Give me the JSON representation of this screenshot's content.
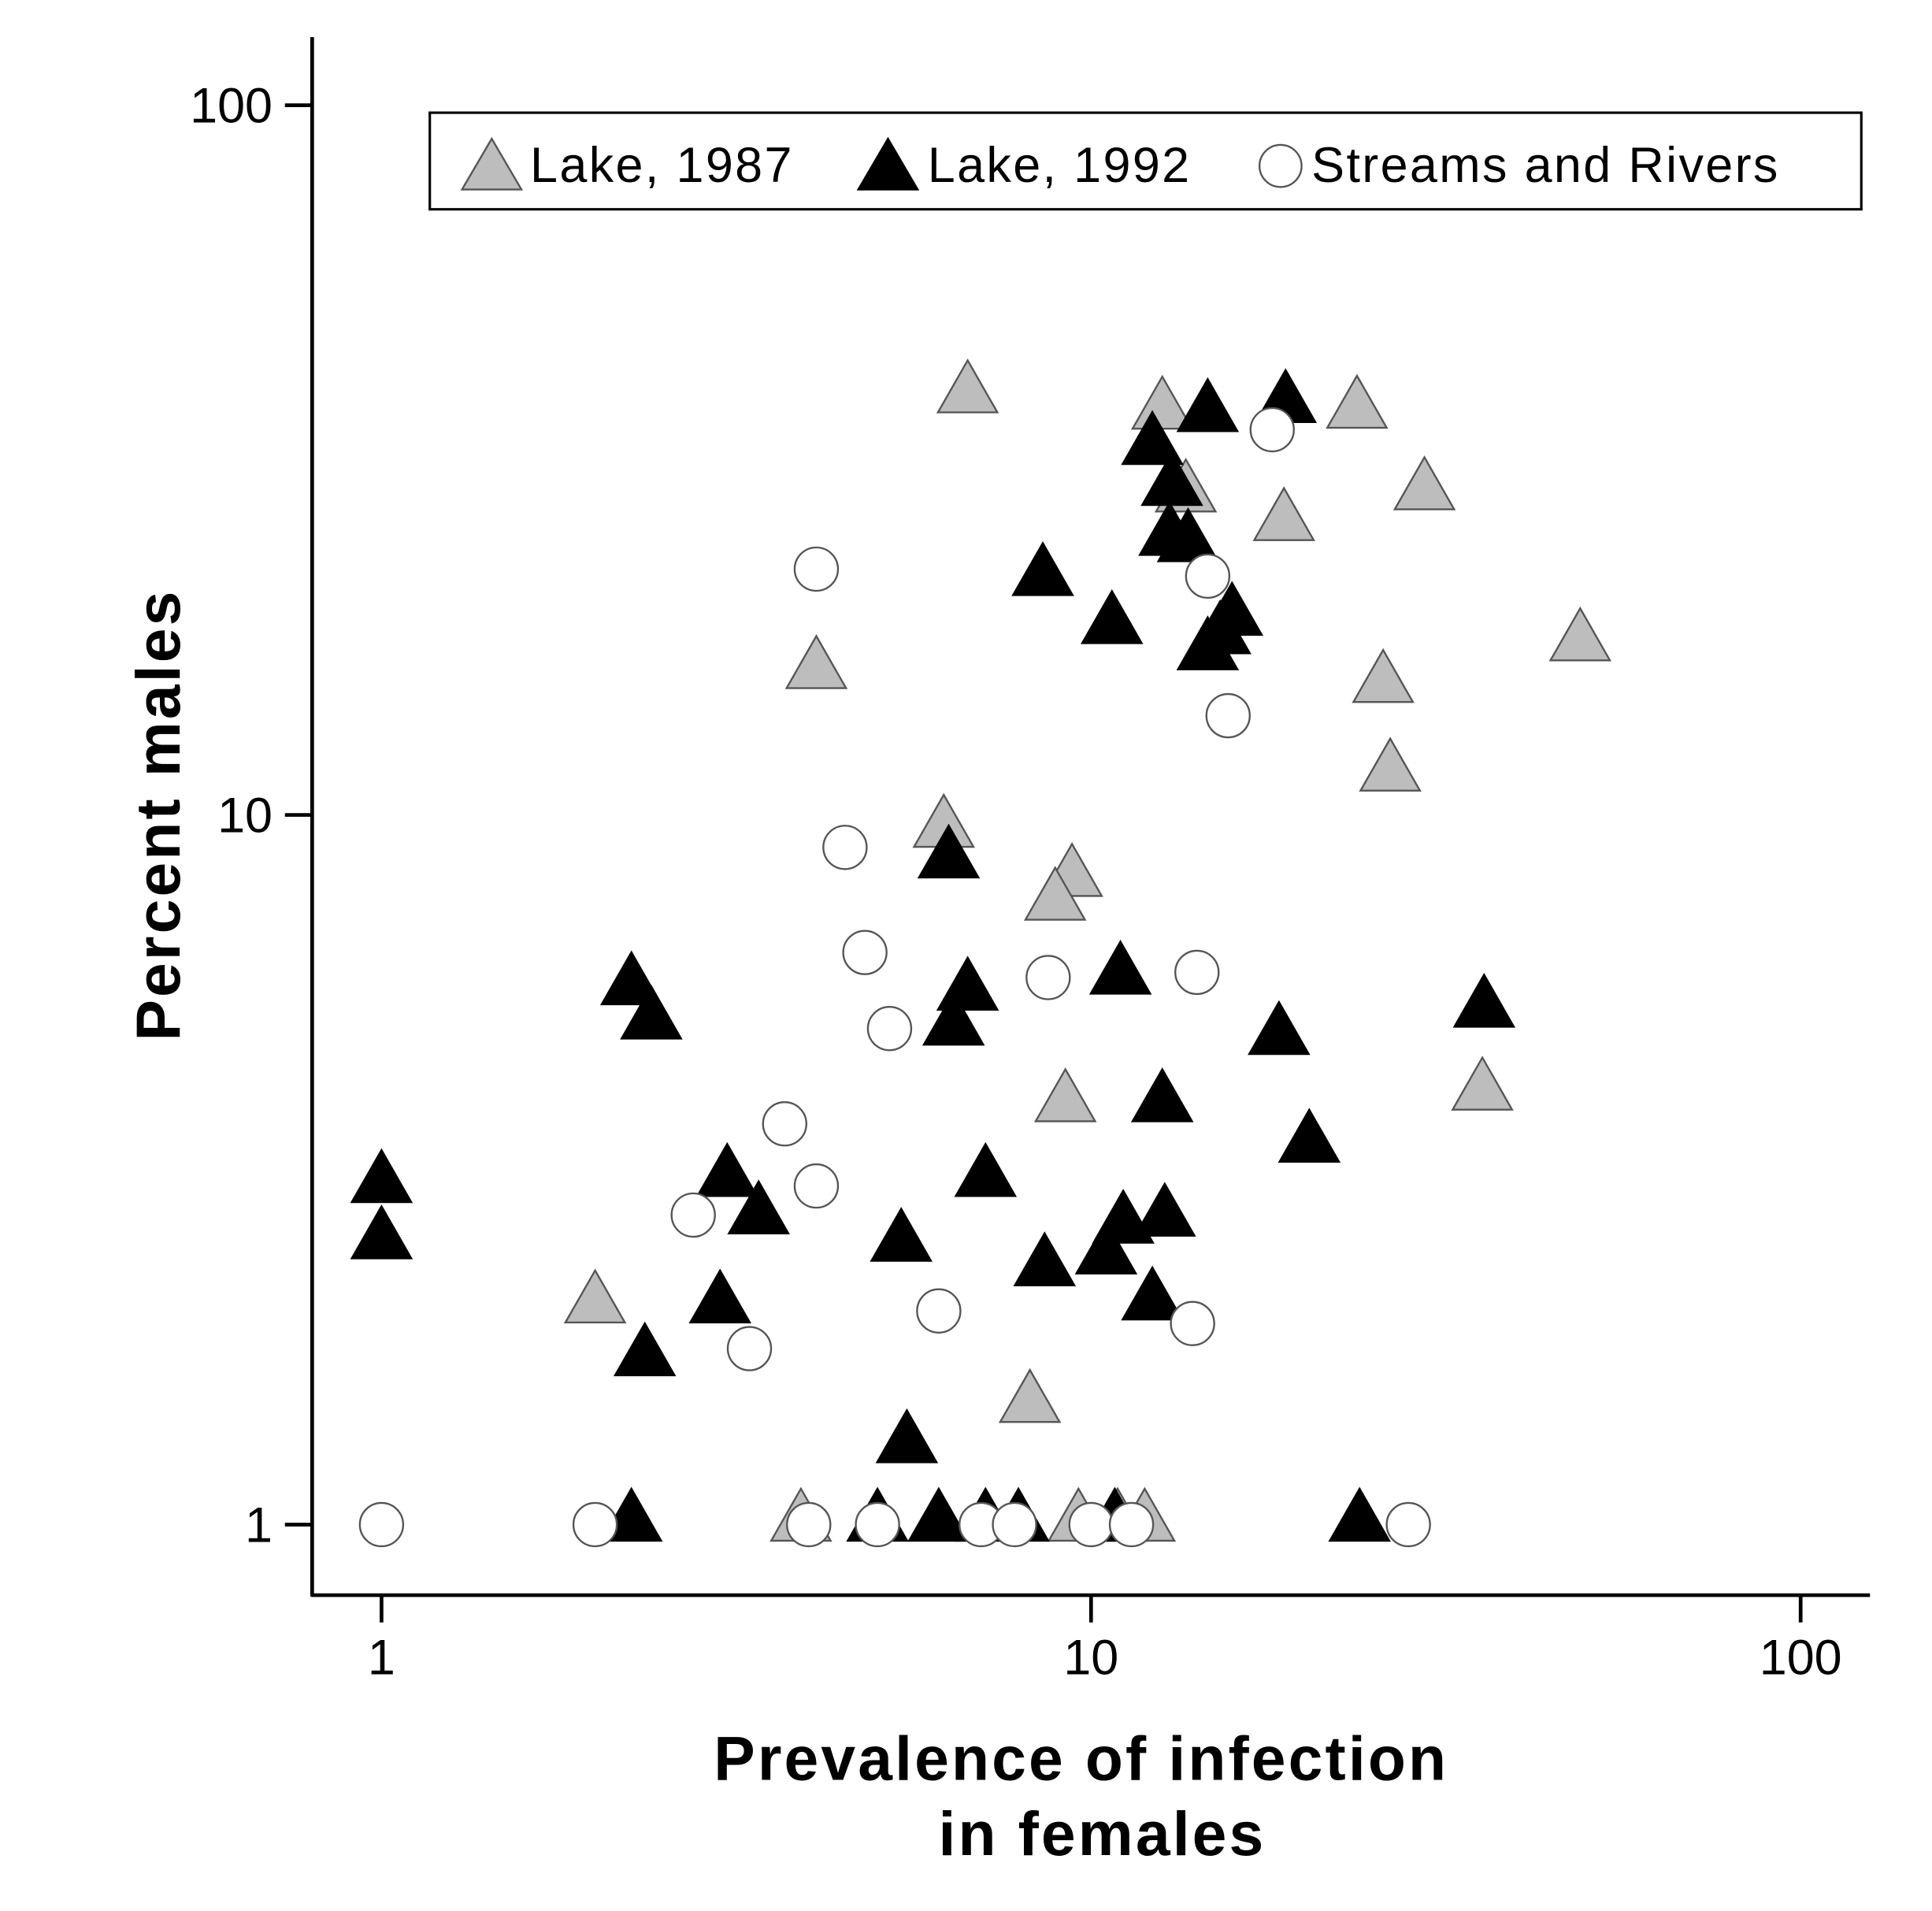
{
  "chart_data": {
    "type": "scatter",
    "title": "",
    "xlabel": [
      "Prevalence of infection",
      "in females"
    ],
    "ylabel": "Percent males",
    "xscale": "log",
    "yscale": "log",
    "xlim": [
      0.8,
      120
    ],
    "ylim": [
      0.8,
      120
    ],
    "xticks": [
      1,
      10,
      100
    ],
    "xtick_labels": [
      "1",
      "10",
      "100"
    ],
    "yticks": [
      1,
      10,
      100
    ],
    "ytick_labels": [
      "1",
      "10",
      "100"
    ],
    "grid": false,
    "legend_position": "top",
    "series": [
      {
        "name": "Lake, 1987",
        "marker": "triangle",
        "color": "#bdbdbd",
        "points": [
          [
            6.7,
            38.9
          ],
          [
            12.6,
            36.9
          ],
          [
            23.7,
            37
          ],
          [
            13.6,
            28.2
          ],
          [
            29.5,
            28.4
          ],
          [
            18.7,
            25.7
          ],
          [
            48.9,
            17.4
          ],
          [
            4.1,
            15.9
          ],
          [
            25.8,
            15.2
          ],
          [
            26.4,
            11.4
          ],
          [
            6.2,
            9.5
          ],
          [
            9.4,
            8.1
          ],
          [
            8.9,
            7.5
          ],
          [
            9.2,
            3.9
          ],
          [
            35.6,
            4.05
          ],
          [
            2.0,
            2.03
          ],
          [
            8.2,
            1.47
          ],
          [
            3.9,
            1
          ],
          [
            9.6,
            1
          ],
          [
            10.9,
            1
          ],
          [
            11.9,
            1
          ]
        ]
      },
      {
        "name": "Lake, 1992",
        "marker": "triangle",
        "color": "#000000",
        "points": [
          [
            14.6,
            36.6
          ],
          [
            18.8,
            37.7
          ],
          [
            12.2,
            32.9
          ],
          [
            13.0,
            28.8
          ],
          [
            12.9,
            24.5
          ],
          [
            13.7,
            24.0
          ],
          [
            8.55,
            21.5
          ],
          [
            10.7,
            18.4
          ],
          [
            15.8,
            18.9
          ],
          [
            15.2,
            17.8
          ],
          [
            14.6,
            16.9
          ],
          [
            6.3,
            8.6
          ],
          [
            11.0,
            5.9
          ],
          [
            2.25,
            5.7
          ],
          [
            6.7,
            5.6
          ],
          [
            2.4,
            5.1
          ],
          [
            6.4,
            5.0
          ],
          [
            35.8,
            5.3
          ],
          [
            18.4,
            4.85
          ],
          [
            12.6,
            3.9
          ],
          [
            20.3,
            3.42
          ],
          [
            1.0,
            3.0
          ],
          [
            1.0,
            2.5
          ],
          [
            3.07,
            3.06
          ],
          [
            3.4,
            2.71
          ],
          [
            7.1,
            3.06
          ],
          [
            11.1,
            2.63
          ],
          [
            12.7,
            2.69
          ],
          [
            5.4,
            2.48
          ],
          [
            10.5,
            2.38
          ],
          [
            8.6,
            2.29
          ],
          [
            3.0,
            2.03
          ],
          [
            12.2,
            2.05
          ],
          [
            2.35,
            1.71
          ],
          [
            5.5,
            1.29
          ],
          [
            2.25,
            1
          ],
          [
            5.0,
            1
          ],
          [
            6.1,
            1
          ],
          [
            7.1,
            1
          ],
          [
            7.9,
            1
          ],
          [
            10.8,
            1
          ],
          [
            23.9,
            1
          ]
        ]
      },
      {
        "name": "Streams and Rivers",
        "marker": "circle",
        "color": "#ffffff",
        "points": [
          [
            18.0,
            34.9
          ],
          [
            4.1,
            22.2
          ],
          [
            14.6,
            21.7
          ],
          [
            15.6,
            13.8
          ],
          [
            4.5,
            9.0
          ],
          [
            4.8,
            6.4
          ],
          [
            8.7,
            5.9
          ],
          [
            14.1,
            6.0
          ],
          [
            5.2,
            5.0
          ],
          [
            3.7,
            3.67
          ],
          [
            4.1,
            3.0
          ],
          [
            2.75,
            2.73
          ],
          [
            6.1,
            2.0
          ],
          [
            3.3,
            1.77
          ],
          [
            13.9,
            1.92
          ],
          [
            1.0,
            1
          ],
          [
            2.0,
            1
          ],
          [
            4.0,
            1
          ],
          [
            5.0,
            1
          ],
          [
            7.0,
            1
          ],
          [
            7.8,
            1
          ],
          [
            10.0,
            1
          ],
          [
            11.4,
            1
          ],
          [
            28.0,
            1
          ]
        ]
      }
    ]
  }
}
